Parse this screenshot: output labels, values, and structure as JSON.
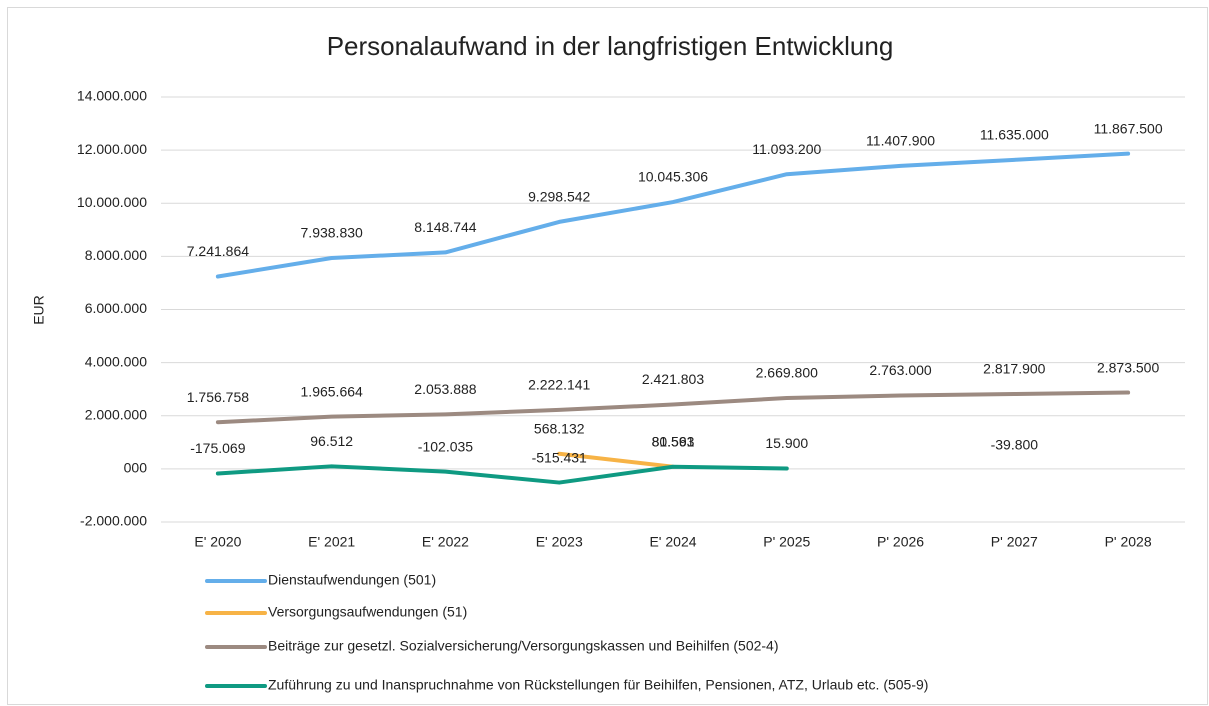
{
  "chart_data": {
    "type": "line",
    "title": "Personalaufwand in der langfristigen Entwicklung",
    "y_label": "EUR",
    "categories": [
      "E' 2020",
      "E' 2021",
      "E' 2022",
      "E' 2023",
      "E' 2024",
      "P' 2025",
      "P' 2026",
      "P' 2027",
      "P' 2028"
    ],
    "ylim": [
      -2000000,
      14000000
    ],
    "yticks": [
      {
        "value": -2000000,
        "label": "-2.000.000"
      },
      {
        "value": 0,
        "label": "000"
      },
      {
        "value": 2000000,
        "label": "2.000.000"
      },
      {
        "value": 4000000,
        "label": "4.000.000"
      },
      {
        "value": 6000000,
        "label": "6.000.000"
      },
      {
        "value": 8000000,
        "label": "8.000.000"
      },
      {
        "value": 10000000,
        "label": "10.000.000"
      },
      {
        "value": 12000000,
        "label": "12.000.000"
      },
      {
        "value": 14000000,
        "label": "14.000.000"
      }
    ],
    "grid": true,
    "legend": "bottom",
    "series": [
      {
        "name": "Dienstaufwendungen (501)",
        "color": "#64aeea",
        "values": [
          7241864,
          7938830,
          8148744,
          9298542,
          10045306,
          11093200,
          11407900,
          11635000,
          11867500
        ],
        "value_labels": [
          "7.241.864",
          "7.938.830",
          "8.148.744",
          "9.298.542",
          "10.045.306",
          "11.093.200",
          "11.407.900",
          "11.635.000",
          "11.867.500"
        ]
      },
      {
        "name": "Versorgungsaufwendungen (51)",
        "color": "#f7b346",
        "values": [
          null,
          null,
          null,
          568132,
          80593,
          null,
          null,
          null,
          null
        ],
        "value_labels": [
          null,
          null,
          null,
          "568.132",
          "80.593",
          null,
          null,
          null,
          null
        ]
      },
      {
        "name": "Beiträge zur gesetzl. Sozialversicherung/Versorgungskassen und Beihilfen (502-4)",
        "color": "#9c8a81",
        "values": [
          1756758,
          1965664,
          2053888,
          2222141,
          2421803,
          2669800,
          2763000,
          2817900,
          2873500
        ],
        "value_labels": [
          "1.756.758",
          "1.965.664",
          "2.053.888",
          "2.222.141",
          "2.421.803",
          "2.669.800",
          "2.763.000",
          "2.817.900",
          "2.873.500"
        ]
      },
      {
        "name": "Zuführung zu und Inanspruchnahme von Rückstellungen für Beihilfen, Pensionen, ATZ, Urlaub etc. (505-9)",
        "color": "#0f9a82",
        "values": [
          -175069,
          96512,
          -102035,
          -515431,
          81561,
          15900,
          null,
          -39800,
          null
        ],
        "value_labels": [
          "-175.069",
          "96.512",
          "-102.035",
          "-515.431",
          "81.561",
          "15.900",
          null,
          "-39.800",
          null
        ]
      }
    ]
  }
}
